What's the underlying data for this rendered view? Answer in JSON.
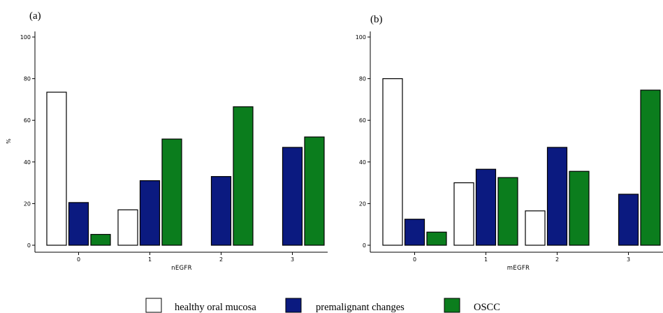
{
  "colors": {
    "healthy": "#ffffff",
    "premalignant": "#0b1a80",
    "oscc": "#0b7d1d",
    "stroke": "#000000"
  },
  "legend": [
    {
      "key": "healthy",
      "label": "healthy oral mucosa"
    },
    {
      "key": "premalignant",
      "label": "premalignant changes"
    },
    {
      "key": "oscc",
      "label": "OSCC"
    }
  ],
  "chart_data": [
    {
      "type": "bar",
      "panel_label": "(a)",
      "xlabel": "nEGFR",
      "ylabel": "%",
      "categories": [
        "0",
        "1",
        "2",
        "3"
      ],
      "yticks": [
        0,
        20,
        40,
        60,
        80,
        100
      ],
      "ylim": [
        0,
        100
      ],
      "grid": false,
      "series": [
        {
          "key": "healthy",
          "name": "healthy oral mucosa",
          "values": [
            73.5,
            17,
            0,
            0
          ]
        },
        {
          "key": "premalignant",
          "name": "premalignant changes",
          "values": [
            20.5,
            31,
            33,
            47
          ]
        },
        {
          "key": "oscc",
          "name": "OSCC",
          "values": [
            5.2,
            51,
            66.5,
            52
          ]
        }
      ]
    },
    {
      "type": "bar",
      "panel_label": "(b)",
      "xlabel": "mEGFR",
      "ylabel": "",
      "categories": [
        "0",
        "1",
        "2",
        "3"
      ],
      "yticks": [
        0,
        20,
        40,
        60,
        80,
        100
      ],
      "ylim": [
        0,
        100
      ],
      "grid": false,
      "series": [
        {
          "key": "healthy",
          "name": "healthy oral mucosa",
          "values": [
            80,
            30,
            16.5,
            0
          ]
        },
        {
          "key": "premalignant",
          "name": "premalignant changes",
          "values": [
            12.5,
            36.5,
            47,
            24.5
          ]
        },
        {
          "key": "oscc",
          "name": "OSCC",
          "values": [
            6.3,
            32.5,
            35.5,
            74.5
          ]
        }
      ]
    }
  ]
}
